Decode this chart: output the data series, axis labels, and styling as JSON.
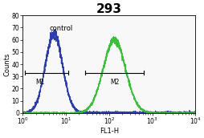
{
  "title": "293",
  "xlabel": "FL1-H",
  "ylabel": "Counts",
  "ylim": [
    0,
    80
  ],
  "xlim_log": [
    1.0,
    10000.0
  ],
  "yticks": [
    0,
    10,
    20,
    30,
    40,
    50,
    60,
    70,
    80
  ],
  "xtick_labels": [
    "10$^0$",
    "10$^1$",
    "10$^2$",
    "10$^3$",
    "10$^4$"
  ],
  "control_label": "control",
  "m1_label": "M1",
  "m2_label": "M2",
  "blue_color": "#2233aa",
  "green_color": "#33bb33",
  "background_color": "#ffffff",
  "plot_bg_color": "#f8f8f8",
  "title_fontsize": 11,
  "axis_label_fontsize": 6,
  "tick_fontsize": 5.5,
  "blue_peak_log": 0.72,
  "blue_peak_height": 65,
  "blue_sigma_log": 0.2,
  "green_peak_log": 2.12,
  "green_peak_height": 60,
  "green_sigma_log": 0.26,
  "m1_x1_log": 0.05,
  "m1_x2_log": 1.05,
  "m1_y": 33,
  "m2_x1_log": 1.45,
  "m2_x2_log": 2.8,
  "m2_y": 33,
  "control_x_log": 0.62,
  "control_y": 72,
  "noise_seed": 42
}
